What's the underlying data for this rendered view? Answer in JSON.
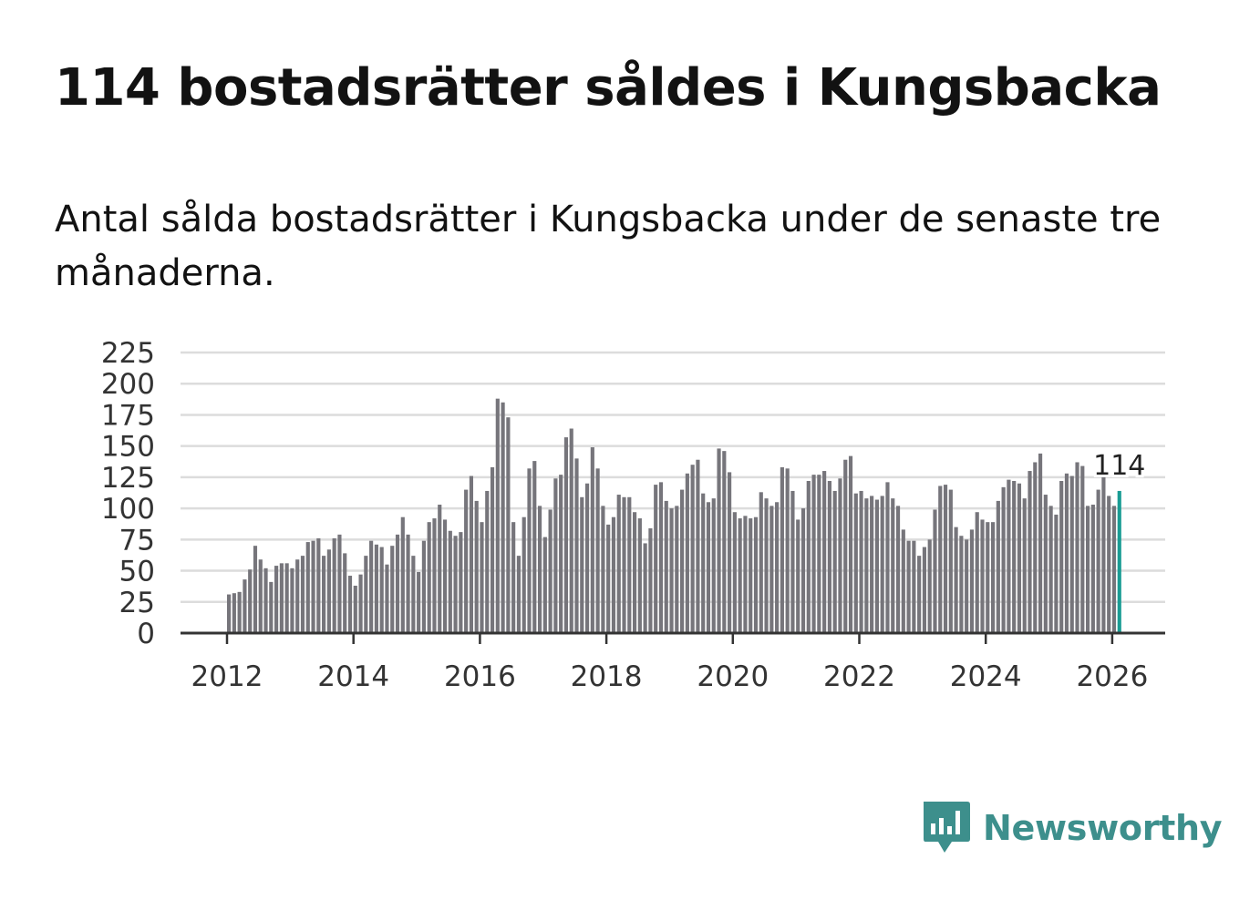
{
  "header": {
    "title": "114 bostadsrätter såldes i Kungsbacka",
    "subtitle": "Antal sålda bostadsrätter i Kungsbacka under de senaste tre månaderna."
  },
  "colors": {
    "bar": "#76757b",
    "highlight": "#1a9c94",
    "grid": "#dcdcdc",
    "axis": "#333333",
    "brand": "#3d8f8c"
  },
  "brand": {
    "name": "Newsworthy",
    "icon": "bar-chart-speech-bubble-icon"
  },
  "chart_data": {
    "type": "bar",
    "title": "114 bostadsrätter såldes i Kungsbacka",
    "subtitle": "Antal sålda bostadsrätter i Kungsbacka under de senaste tre månaderna.",
    "xlabel": "",
    "ylabel": "",
    "ylim": [
      0,
      225
    ],
    "y_ticks": [
      0,
      25,
      50,
      75,
      100,
      125,
      150,
      175,
      200,
      225
    ],
    "x_ticks": [
      "2012",
      "2014",
      "2016",
      "2018",
      "2020",
      "2022",
      "2024",
      "2026"
    ],
    "x_start": "2012-01",
    "x_end": "2026-02",
    "grid": true,
    "highlight": {
      "x": "2026-02",
      "value": 114,
      "label": "114"
    },
    "x": [
      "2012-01",
      "2012-02",
      "2012-03",
      "2012-04",
      "2012-05",
      "2012-06",
      "2012-07",
      "2012-08",
      "2012-09",
      "2012-10",
      "2012-11",
      "2012-12",
      "2013-01",
      "2013-02",
      "2013-03",
      "2013-04",
      "2013-05",
      "2013-06",
      "2013-07",
      "2013-08",
      "2013-09",
      "2013-10",
      "2013-11",
      "2013-12",
      "2014-01",
      "2014-02",
      "2014-03",
      "2014-04",
      "2014-05",
      "2014-06",
      "2014-07",
      "2014-08",
      "2014-09",
      "2014-10",
      "2014-11",
      "2014-12",
      "2015-01",
      "2015-02",
      "2015-03",
      "2015-04",
      "2015-05",
      "2015-06",
      "2015-07",
      "2015-08",
      "2015-09",
      "2015-10",
      "2015-11",
      "2015-12",
      "2016-01",
      "2016-02",
      "2016-03",
      "2016-04",
      "2016-05",
      "2016-06",
      "2016-07",
      "2016-08",
      "2016-09",
      "2016-10",
      "2016-11",
      "2016-12",
      "2017-01",
      "2017-02",
      "2017-03",
      "2017-04",
      "2017-05",
      "2017-06",
      "2017-07",
      "2017-08",
      "2017-09",
      "2017-10",
      "2017-11",
      "2017-12",
      "2018-01",
      "2018-02",
      "2018-03",
      "2018-04",
      "2018-05",
      "2018-06",
      "2018-07",
      "2018-08",
      "2018-09",
      "2018-10",
      "2018-11",
      "2018-12",
      "2019-01",
      "2019-02",
      "2019-03",
      "2019-04",
      "2019-05",
      "2019-06",
      "2019-07",
      "2019-08",
      "2019-09",
      "2019-10",
      "2019-11",
      "2019-12",
      "2020-01",
      "2020-02",
      "2020-03",
      "2020-04",
      "2020-05",
      "2020-06",
      "2020-07",
      "2020-08",
      "2020-09",
      "2020-10",
      "2020-11",
      "2020-12",
      "2021-01",
      "2021-02",
      "2021-03",
      "2021-04",
      "2021-05",
      "2021-06",
      "2021-07",
      "2021-08",
      "2021-09",
      "2021-10",
      "2021-11",
      "2021-12",
      "2022-01",
      "2022-02",
      "2022-03",
      "2022-04",
      "2022-05",
      "2022-06",
      "2022-07",
      "2022-08",
      "2022-09",
      "2022-10",
      "2022-11",
      "2022-12",
      "2023-01",
      "2023-02",
      "2023-03",
      "2023-04",
      "2023-05",
      "2023-06",
      "2023-07",
      "2023-08",
      "2023-09",
      "2023-10",
      "2023-11",
      "2023-12",
      "2024-01",
      "2024-02",
      "2024-03",
      "2024-04",
      "2024-05",
      "2024-06",
      "2024-07",
      "2024-08",
      "2024-09",
      "2024-10",
      "2024-11",
      "2024-12",
      "2025-01",
      "2025-02",
      "2025-03",
      "2025-04",
      "2025-05",
      "2025-06",
      "2025-07",
      "2025-08",
      "2025-09",
      "2025-10",
      "2025-11",
      "2025-12",
      "2026-01",
      "2026-02"
    ],
    "values": [
      31,
      32,
      33,
      43,
      51,
      70,
      59,
      52,
      41,
      54,
      56,
      56,
      52,
      59,
      62,
      73,
      74,
      76,
      62,
      67,
      76,
      79,
      64,
      46,
      38,
      47,
      62,
      74,
      71,
      69,
      55,
      70,
      79,
      93,
      79,
      62,
      49,
      74,
      89,
      92,
      103,
      91,
      82,
      78,
      81,
      115,
      126,
      106,
      89,
      114,
      133,
      188,
      185,
      173,
      89,
      62,
      93,
      132,
      138,
      102,
      77,
      99,
      124,
      127,
      157,
      164,
      140,
      109,
      120,
      149,
      132,
      102,
      87,
      93,
      111,
      109,
      109,
      97,
      92,
      72,
      84,
      119,
      121,
      106,
      100,
      102,
      115,
      128,
      135,
      139,
      112,
      105,
      108,
      148,
      146,
      129,
      97,
      92,
      94,
      92,
      93,
      113,
      108,
      102,
      105,
      133,
      132,
      114,
      91,
      100,
      122,
      127,
      127,
      130,
      122,
      114,
      124,
      139,
      142,
      112,
      114,
      108,
      110,
      107,
      110,
      121,
      108,
      102,
      83,
      74,
      74,
      62,
      69,
      75,
      99,
      118,
      119,
      115,
      85,
      78,
      75,
      83,
      97,
      91,
      89,
      89,
      106,
      117,
      123,
      122,
      120,
      108,
      130,
      137,
      144,
      111,
      102,
      95,
      122,
      128,
      126,
      137,
      134,
      102,
      103,
      115,
      125,
      110,
      102,
      114
    ]
  }
}
